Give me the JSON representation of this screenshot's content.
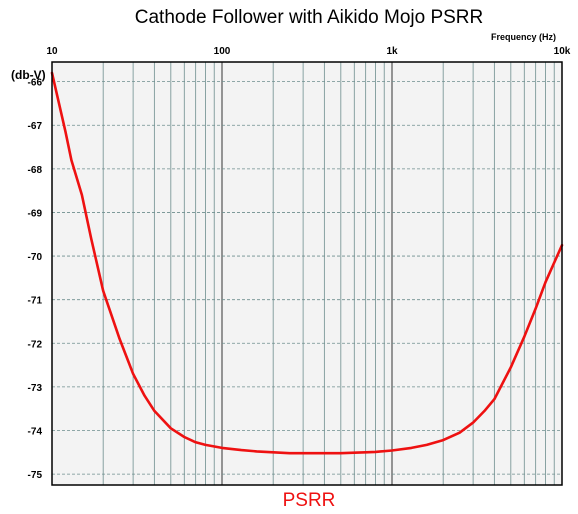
{
  "chart_data": {
    "type": "line",
    "title": "Cathode Follower with Aikido Mojo PSRR",
    "xlabel": "Frequency   (Hz)",
    "ylabel": "(db-V)",
    "x_scale": "log",
    "xlim": [
      10,
      10000
    ],
    "ylim": [
      -75.25,
      -65.55
    ],
    "x_ticks": [
      {
        "value": 10,
        "label": "10"
      },
      {
        "value": 100,
        "label": "100"
      },
      {
        "value": 1000,
        "label": "1k"
      },
      {
        "value": 10000,
        "label": "10k"
      }
    ],
    "y_ticks": [
      {
        "value": -66,
        "label": "-66"
      },
      {
        "value": -67,
        "label": "-67"
      },
      {
        "value": -68,
        "label": "-68"
      },
      {
        "value": -69,
        "label": "-69"
      },
      {
        "value": -70,
        "label": "-70"
      },
      {
        "value": -71,
        "label": "-71"
      },
      {
        "value": -72,
        "label": "-72"
      },
      {
        "value": -73,
        "label": "-73"
      },
      {
        "value": -74,
        "label": "-74"
      },
      {
        "value": -75,
        "label": "-75"
      }
    ],
    "grid": true,
    "legend_position": "bottom-center",
    "series": [
      {
        "name": "PSRR",
        "color": "#ee1111",
        "x": [
          10,
          11,
          12,
          13,
          15,
          17,
          20,
          25,
          30,
          35,
          40,
          50,
          60,
          70,
          80,
          100,
          130,
          160,
          200,
          250,
          300,
          400,
          500,
          600,
          700,
          800,
          1000,
          1300,
          1600,
          2000,
          2500,
          3000,
          3500,
          4000,
          5000,
          6000,
          7000,
          8000,
          9000,
          10000
        ],
        "y": [
          -65.8,
          -66.5,
          -67.15,
          -67.8,
          -68.6,
          -69.6,
          -70.8,
          -71.9,
          -72.7,
          -73.2,
          -73.55,
          -73.95,
          -74.15,
          -74.27,
          -74.33,
          -74.4,
          -74.45,
          -74.48,
          -74.5,
          -74.52,
          -74.52,
          -74.52,
          -74.52,
          -74.51,
          -74.5,
          -74.49,
          -74.46,
          -74.4,
          -74.33,
          -74.22,
          -74.05,
          -73.82,
          -73.55,
          -73.28,
          -72.55,
          -71.85,
          -71.2,
          -70.6,
          -70.15,
          -69.75
        ]
      }
    ]
  }
}
